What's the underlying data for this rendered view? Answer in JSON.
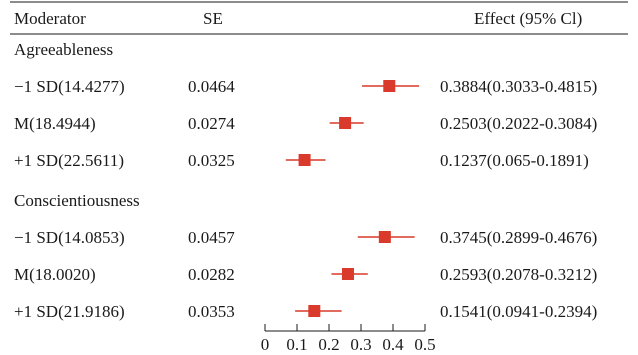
{
  "chart_data": {
    "type": "forest",
    "headers": {
      "moderator": "Moderator",
      "se": "SE",
      "effect": "Effect (95% Cl)"
    },
    "groups": [
      {
        "label": "Agreeableness",
        "rows": [
          {
            "moderator": "−1 SD(14.4277)",
            "se": "0.0464",
            "effect_text": "0.3884(0.3033-0.4815)",
            "estimate": 0.3884,
            "lower": 0.3033,
            "upper": 0.4815
          },
          {
            "moderator": "M(18.4944)",
            "se": "0.0274",
            "effect_text": "0.2503(0.2022-0.3084)",
            "estimate": 0.2503,
            "lower": 0.2022,
            "upper": 0.3084
          },
          {
            "moderator": "+1 SD(22.5611)",
            "se": "0.0325",
            "effect_text": "0.1237(0.065-0.1891)",
            "estimate": 0.1237,
            "lower": 0.065,
            "upper": 0.1891
          }
        ]
      },
      {
        "label": "Conscientiousness",
        "rows": [
          {
            "moderator": "−1 SD(14.0853)",
            "se": "0.0457",
            "effect_text": "0.3745(0.2899-0.4676)",
            "estimate": 0.3745,
            "lower": 0.2899,
            "upper": 0.4676
          },
          {
            "moderator": "M(18.0020)",
            "se": "0.0282",
            "effect_text": "0.2593(0.2078-0.3212)",
            "estimate": 0.2593,
            "lower": 0.2078,
            "upper": 0.3212
          },
          {
            "moderator": "+1 SD(21.9186)",
            "se": "0.0353",
            "effect_text": "0.1541(0.0941-0.2394)",
            "estimate": 0.1541,
            "lower": 0.0941,
            "upper": 0.2394
          }
        ]
      }
    ],
    "x_axis": {
      "range": [
        0,
        0.5
      ],
      "ticks": [
        0,
        0.1,
        0.2,
        0.3,
        0.4,
        0.5
      ],
      "tick_labels": [
        "0",
        "0.1",
        "0.2",
        "0.3",
        "0.4",
        "0.5"
      ]
    },
    "colors": {
      "marker": "#d93a2b",
      "text": "#1a1a1a",
      "rule": "#1a1a1a"
    }
  }
}
